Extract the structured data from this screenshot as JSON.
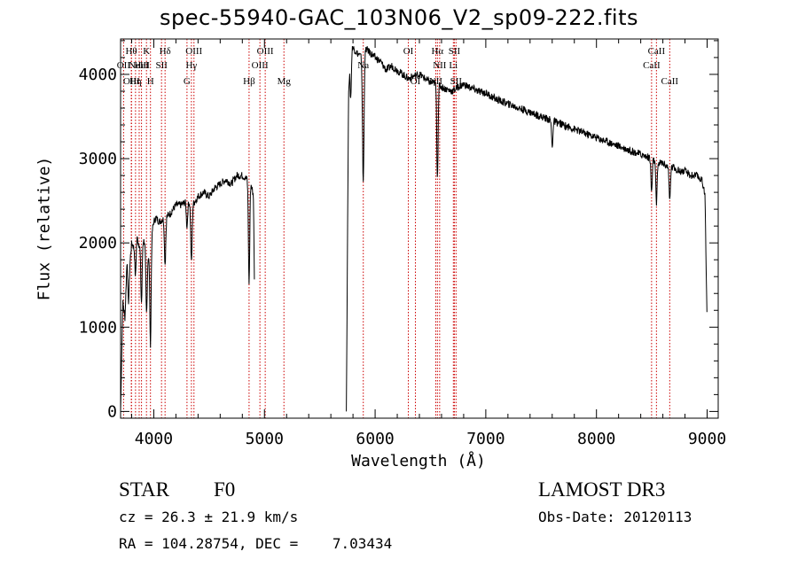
{
  "header": {
    "title": "spec-55940-GAC_103N06_V2_sp09-222.fits"
  },
  "chart_data": {
    "type": "line",
    "title": "spec-55940-GAC_103N06_V2_sp09-222.fits",
    "xlabel": "Wavelength (Å)",
    "ylabel": "Flux (relative)",
    "xlim": [
      3700,
      9100
    ],
    "ylim": [
      -80,
      4420
    ],
    "xticks": [
      4000,
      5000,
      6000,
      7000,
      8000,
      9000
    ],
    "xtick_labels": [
      "4000",
      "5000",
      "6000",
      "7000",
      "8000",
      "9000"
    ],
    "yticks": [
      0,
      1000,
      2000,
      3000,
      4000
    ],
    "ytick_labels": [
      "0",
      "1000",
      "2000",
      "3000",
      "4000"
    ],
    "series": [
      {
        "name": "flux",
        "segments": [
          {
            "x": [
              3700,
              3720,
              3740,
              3760,
              3780,
              3800,
              3820,
              3840,
              3860,
              3880,
              3900,
              3920,
              3940,
              3960,
              3980,
              4000,
              4020,
              4050,
              4100,
              4150,
              4200,
              4250,
              4300,
              4350,
              4400,
              4450,
              4500,
              4550,
              4600,
              4650,
              4700,
              4750,
              4800,
              4850,
              4880,
              4900,
              4910
            ],
            "y": [
              0,
              1300,
              1100,
              1900,
              1700,
              2000,
              1950,
              2150,
              2000,
              1950,
              2050,
              2000,
              1800,
              1900,
              2100,
              2250,
              2300,
              2250,
              2300,
              2350,
              2450,
              2450,
              2500,
              2450,
              2550,
              2600,
              2550,
              2650,
              2700,
              2750,
              2700,
              2800,
              2800,
              2750,
              2700,
              2550,
              1500
            ]
          },
          {
            "x": [
              5740,
              5760,
              5770,
              5790,
              5810,
              5840,
              5880,
              5920,
              5960,
              6000,
              6050,
              6100,
              6150,
              6200,
              6250,
              6300,
              6350,
              6400,
              6450,
              6500,
              6550,
              6600,
              6650,
              6700,
              6750,
              6800,
              6850,
              6900,
              6950,
              7000,
              7100,
              7200,
              7300,
              7400,
              7500,
              7600,
              7700,
              7800,
              7900,
              8000,
              8100,
              8200,
              8300,
              8400,
              8500,
              8550,
              8600,
              8650,
              8700,
              8750,
              8800,
              8850,
              8900,
              8950,
              8980,
              9000
            ],
            "y": [
              0,
              3800,
              4100,
              4350,
              4300,
              4250,
              4200,
              4300,
              4250,
              4200,
              4150,
              4050,
              4100,
              4050,
              4000,
              3950,
              3980,
              4000,
              3950,
              3900,
              3900,
              3850,
              3820,
              3800,
              3850,
              3880,
              3850,
              3820,
              3790,
              3780,
              3700,
              3650,
              3600,
              3550,
              3500,
              3450,
              3400,
              3350,
              3300,
              3250,
              3200,
              3150,
              3100,
              3050,
              3000,
              2950,
              2950,
              2900,
              2900,
              2850,
              2850,
              2800,
              2800,
              2750,
              2600,
              1000
            ]
          }
        ],
        "absorption": [
          {
            "x": 3770,
            "depth": 500
          },
          {
            "x": 3835,
            "depth": 500
          },
          {
            "x": 3889,
            "depth": 700
          },
          {
            "x": 3934,
            "depth": 700
          },
          {
            "x": 3970,
            "depth": 1200
          },
          {
            "x": 4102,
            "depth": 550
          },
          {
            "x": 4300,
            "depth": 300
          },
          {
            "x": 4340,
            "depth": 700
          },
          {
            "x": 4861,
            "depth": 1200
          },
          {
            "x": 5780,
            "depth": 500
          },
          {
            "x": 5890,
            "depth": 900
          },
          {
            "x": 5896,
            "depth": 800
          },
          {
            "x": 6563,
            "depth": 1100
          },
          {
            "x": 7600,
            "depth": 300
          },
          {
            "x": 8498,
            "depth": 400
          },
          {
            "x": 8542,
            "depth": 500
          },
          {
            "x": 8662,
            "depth": 400
          }
        ]
      }
    ],
    "line_markers": [
      {
        "x": 3727,
        "label": "OII",
        "row": 2
      },
      {
        "x": 3797,
        "label": "Hθ",
        "row": 1
      },
      {
        "x": 3799,
        "label": "OIII",
        "row": 3
      },
      {
        "x": 3835,
        "label": "Hη",
        "row": 3
      },
      {
        "x": 3868,
        "label": "NeIII",
        "row": 2
      },
      {
        "x": 3889,
        "label": "HeI",
        "row": 2
      },
      {
        "x": 3934,
        "label": "K",
        "row": 1
      },
      {
        "x": 3970,
        "label": "H",
        "row": 3
      },
      {
        "x": 4070,
        "label": "SII",
        "row": 2
      },
      {
        "x": 4102,
        "label": "Hδ",
        "row": 1
      },
      {
        "x": 4300,
        "label": "G",
        "row": 3
      },
      {
        "x": 4340,
        "label": "Hγ",
        "row": 2
      },
      {
        "x": 4363,
        "label": "OIII",
        "row": 1
      },
      {
        "x": 4861,
        "label": "Hβ",
        "row": 3
      },
      {
        "x": 4959,
        "label": "OIII",
        "row": 2
      },
      {
        "x": 5007,
        "label": "OIII",
        "row": 1
      },
      {
        "x": 5176,
        "label": "Mg",
        "row": 3
      },
      {
        "x": 5893,
        "label": "Na",
        "row": 2
      },
      {
        "x": 6300,
        "label": "OI",
        "row": 1
      },
      {
        "x": 6364,
        "label": "OI",
        "row": 3
      },
      {
        "x": 6548,
        "label": "NII",
        "row": 3
      },
      {
        "x": 6563,
        "label": "Hα",
        "row": 1
      },
      {
        "x": 6583,
        "label": "NII",
        "row": 2
      },
      {
        "x": 6707,
        "label": "Li",
        "row": 2
      },
      {
        "x": 6716,
        "label": "SII",
        "row": 1
      },
      {
        "x": 6731,
        "label": "SII",
        "row": 3
      },
      {
        "x": 8498,
        "label": "CaII",
        "row": 2
      },
      {
        "x": 8542,
        "label": "CaII",
        "row": 1
      },
      {
        "x": 8662,
        "label": "CaII",
        "row": 3
      }
    ]
  },
  "info": {
    "class": "STAR",
    "subclass": "F0",
    "survey": "LAMOST DR3",
    "cz": "cz = 26.3 ± 21.9 km/s",
    "obs_date": "Obs-Date: 20120113",
    "coords": "RA = 104.28754, DEC =    7.03434"
  },
  "colors": {
    "marker": "#cc0000",
    "line": "#000000",
    "axes": "#000000",
    "background": "#ffffff"
  }
}
